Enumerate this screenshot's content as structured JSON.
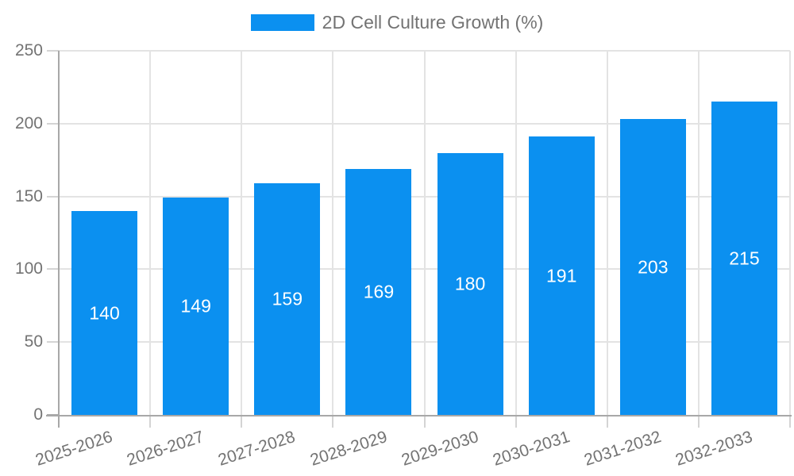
{
  "chart_data": {
    "type": "bar",
    "title": "2D Cell Culture Growth (%)",
    "legend": {
      "label": "2D Cell Culture Growth (%)",
      "position": "top"
    },
    "categories": [
      "2025-2026",
      "2026-2027",
      "2027-2028",
      "2028-2029",
      "2029-2030",
      "2030-2031",
      "2031-2032",
      "2032-2033"
    ],
    "values": [
      140,
      149,
      159,
      169,
      180,
      191,
      203,
      215
    ],
    "xlabel": "",
    "ylabel": "",
    "ylim": [
      0,
      250
    ],
    "yticks": [
      0,
      50,
      100,
      150,
      200,
      250
    ],
    "grid": "horizontal and vertical gridlines on",
    "bar_label_position": "inside-middle",
    "x_label_rotation_deg": -18,
    "colors": {
      "bar": "#0b90f0",
      "grid": "#e3e3e3",
      "tick": "#d4d4d4",
      "axis": "#a8a8a8",
      "text": "#737373",
      "bar_label": "#ffffff",
      "background": "#ffffff"
    }
  }
}
